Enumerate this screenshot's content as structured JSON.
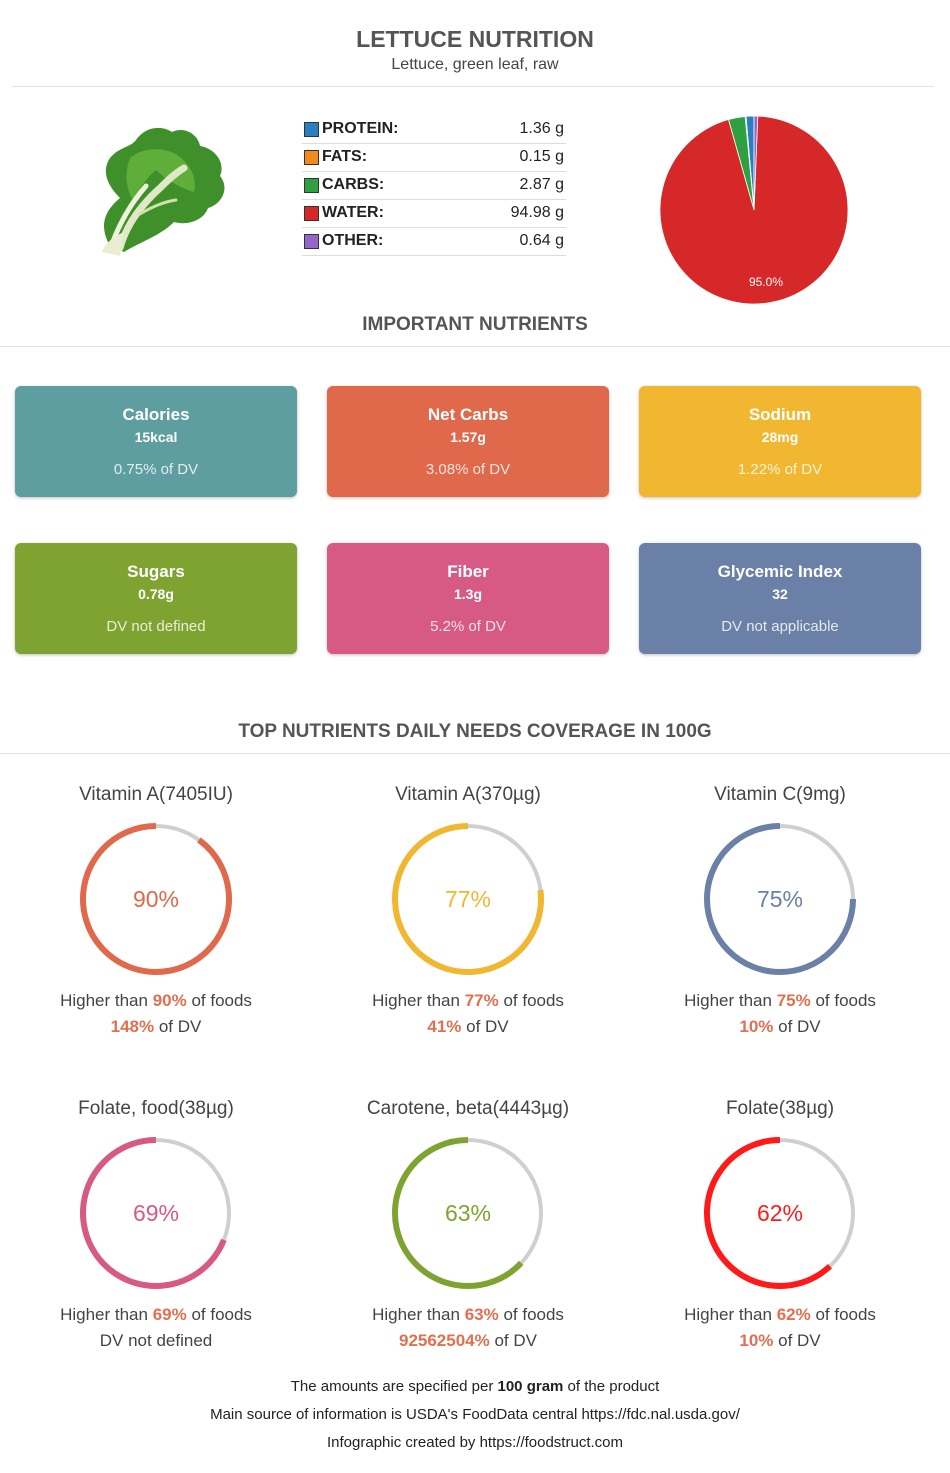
{
  "header": {
    "title": "LETTUCE NUTRITION",
    "subtitle": "Lettuce, green leaf, raw"
  },
  "macros": [
    {
      "label": "PROTEIN:",
      "value": "1.36 g",
      "color": "#2a7fc1"
    },
    {
      "label": "FATS:",
      "value": "0.15 g",
      "color": "#f28b1e"
    },
    {
      "label": "CARBS:",
      "value": "2.87 g",
      "color": "#2fa040"
    },
    {
      "label": "WATER:",
      "value": "94.98 g",
      "color": "#d62828"
    },
    {
      "label": "OTHER:",
      "value": "0.64 g",
      "color": "#9466c9"
    }
  ],
  "chart_data": {
    "type": "pie",
    "slices": [
      {
        "name": "PROTEIN",
        "value": 1.36,
        "color": "#2a7fc1"
      },
      {
        "name": "FATS",
        "value": 0.15,
        "color": "#f28b1e"
      },
      {
        "name": "CARBS",
        "value": 2.87,
        "color": "#2fa040"
      },
      {
        "name": "WATER",
        "value": 94.98,
        "color": "#d62828"
      },
      {
        "name": "OTHER",
        "value": 0.64,
        "color": "#9466c9"
      }
    ],
    "data_labels": [
      "95.0%"
    ]
  },
  "important": {
    "title": "IMPORTANT NUTRIENTS",
    "cards": [
      {
        "title": "Calories",
        "value": "15kcal",
        "dv": "0.75% of DV",
        "color": "#5f9ea0"
      },
      {
        "title": "Net Carbs",
        "value": "1.57g",
        "dv": "3.08% of DV",
        "color": "#e0684b"
      },
      {
        "title": "Sodium",
        "value": "28mg",
        "dv": "1.22% of DV",
        "color": "#f1b731"
      },
      {
        "title": "Sugars",
        "value": "0.78g",
        "dv": "DV not defined",
        "color": "#7fa330"
      },
      {
        "title": "Fiber",
        "value": "1.3g",
        "dv": "5.2% of DV",
        "color": "#d65a84"
      },
      {
        "title": "Glycemic Index",
        "value": "32",
        "dv": "DV not applicable",
        "color": "#6a80a6"
      }
    ]
  },
  "coverage": {
    "title": "TOP NUTRIENTS DAILY NEEDS COVERAGE IN 100G",
    "items": [
      {
        "title": "Vitamin A(7405IU)",
        "percent": 90,
        "pct_label": "90%",
        "higher_prefix": "Higher than ",
        "higher_value": "90%",
        "higher_suffix": " of foods",
        "dv_value": "148%",
        "dv_suffix": " of DV",
        "color": "#e0684b"
      },
      {
        "title": "Vitamin A(370µg)",
        "percent": 77,
        "pct_label": "77%",
        "higher_prefix": "Higher than ",
        "higher_value": "77%",
        "higher_suffix": " of foods",
        "dv_value": "41%",
        "dv_suffix": " of DV",
        "color": "#f1b731"
      },
      {
        "title": "Vitamin C(9mg)",
        "percent": 75,
        "pct_label": "75%",
        "higher_prefix": "Higher than ",
        "higher_value": "75%",
        "higher_suffix": " of foods",
        "dv_value": "10%",
        "dv_suffix": " of DV",
        "color": "#6a80a6"
      },
      {
        "title": "Folate, food(38µg)",
        "percent": 69,
        "pct_label": "69%",
        "higher_prefix": "Higher than ",
        "higher_value": "69%",
        "higher_suffix": " of foods",
        "dv_value": "",
        "dv_suffix": "DV not defined",
        "color": "#d65a84"
      },
      {
        "title": "Carotene, beta(4443µg)",
        "percent": 63,
        "pct_label": "63%",
        "higher_prefix": "Higher than ",
        "higher_value": "63%",
        "higher_suffix": " of foods",
        "dv_value": "92562504%",
        "dv_suffix": " of DV",
        "color": "#7fa330"
      },
      {
        "title": "Folate(38µg)",
        "percent": 62,
        "pct_label": "62%",
        "higher_prefix": "Higher than ",
        "higher_value": "62%",
        "higher_suffix": " of foods",
        "dv_value": "10%",
        "dv_suffix": " of DV",
        "color": "#ff1a1a"
      }
    ]
  },
  "footer": {
    "line1_prefix": "The amounts are specified per ",
    "line1_bold": "100 gram",
    "line1_suffix": " of the product",
    "line2": "Main source of information is USDA's FoodData central https://fdc.nal.usda.gov/",
    "line3": "Infographic created by https://foodstruct.com"
  }
}
